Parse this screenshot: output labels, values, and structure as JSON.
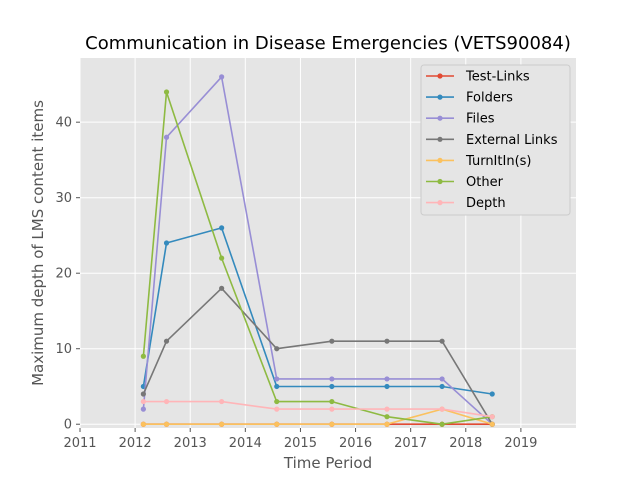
{
  "chart_data": {
    "type": "line",
    "title": "Communication in Disease Emergencies (VETS90084)",
    "xlabel": "Time Period",
    "ylabel": "Maximum depth of LMS content items",
    "xlim": [
      2011,
      2020
    ],
    "ylim": [
      -0.5,
      48.5
    ],
    "xticks": [
      2011,
      2012,
      2013,
      2014,
      2015,
      2016,
      2017,
      2018,
      2019
    ],
    "yticks": [
      0,
      10,
      20,
      30,
      40
    ],
    "grid": true,
    "legend_position": "top-right",
    "series": [
      {
        "name": "Test-Links",
        "color": "#e24a33",
        "x": [
          2012.15,
          2012.57,
          2013.57,
          2014.57,
          2015.57,
          2016.57,
          2017.57,
          2018.48
        ],
        "y": [
          0,
          0,
          0,
          0,
          0,
          0,
          0,
          0
        ]
      },
      {
        "name": "Folders",
        "color": "#348abd",
        "x": [
          2012.15,
          2012.57,
          2013.57,
          2014.57,
          2015.57,
          2016.57,
          2017.57,
          2018.48
        ],
        "y": [
          5,
          24,
          26,
          5,
          5,
          5,
          5,
          4
        ]
      },
      {
        "name": "Files",
        "color": "#988ed5",
        "x": [
          2012.15,
          2012.57,
          2013.57,
          2014.57,
          2015.57,
          2016.57,
          2017.57,
          2018.48
        ],
        "y": [
          2,
          38,
          46,
          6,
          6,
          6,
          6,
          0
        ]
      },
      {
        "name": "External Links",
        "color": "#777777",
        "x": [
          2012.15,
          2012.57,
          2013.57,
          2014.57,
          2015.57,
          2016.57,
          2017.57,
          2018.48
        ],
        "y": [
          4,
          11,
          18,
          10,
          11,
          11,
          11,
          0
        ]
      },
      {
        "name": "TurnItIn(s)",
        "color": "#fbc15e",
        "x": [
          2012.15,
          2012.57,
          2013.57,
          2014.57,
          2015.57,
          2016.57,
          2017.57,
          2018.48
        ],
        "y": [
          0,
          0,
          0,
          0,
          0,
          0,
          2,
          0
        ]
      },
      {
        "name": "Other",
        "color": "#8eba42",
        "x": [
          2012.15,
          2012.57,
          2013.57,
          2014.57,
          2015.57,
          2016.57,
          2017.57,
          2018.48
        ],
        "y": [
          9,
          44,
          22,
          3,
          3,
          1,
          0,
          1
        ]
      },
      {
        "name": "Depth",
        "color": "#ffb5b8",
        "x": [
          2012.15,
          2012.57,
          2013.57,
          2014.57,
          2015.57,
          2016.57,
          2017.57,
          2018.48
        ],
        "y": [
          3,
          3,
          3,
          2,
          2,
          2,
          2,
          1
        ]
      }
    ]
  }
}
